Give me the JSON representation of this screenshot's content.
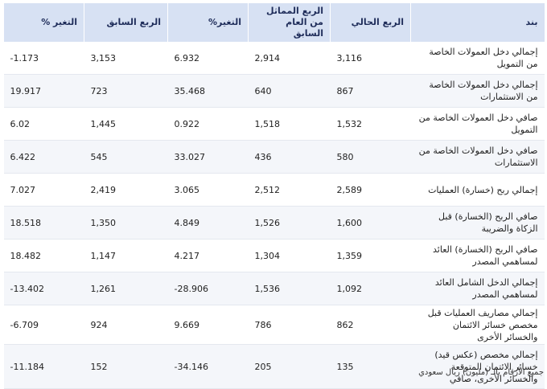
{
  "table": {
    "headers": [
      "بند",
      "الربع الحالي",
      "الربع المماثل من العام السابق",
      "التغير%",
      "الربع السابق",
      "التغير %"
    ],
    "rows": [
      {
        "item": "إجمالي دخل العمولات الخاصة من التمويل",
        "current": "3,116",
        "same_last_year": "2,914",
        "change_yoy": "6.932",
        "previous": "3,153",
        "change_qoq": "-1.173"
      },
      {
        "item": "إجمالي دخل العمولات الخاصة من الاستثمارات",
        "current": "867",
        "same_last_year": "640",
        "change_yoy": "35.468",
        "previous": "723",
        "change_qoq": "19.917"
      },
      {
        "item": "صافي دخل العمولات الخاصة من التمويل",
        "current": "1,532",
        "same_last_year": "1,518",
        "change_yoy": "0.922",
        "previous": "1,445",
        "change_qoq": "6.02"
      },
      {
        "item": "صافي دخل العمولات الخاصة من الاستثمارات",
        "current": "580",
        "same_last_year": "436",
        "change_yoy": "33.027",
        "previous": "545",
        "change_qoq": "6.422"
      },
      {
        "item": "إجمالي ربح (خسارة) العمليات",
        "current": "2,589",
        "same_last_year": "2,512",
        "change_yoy": "3.065",
        "previous": "2,419",
        "change_qoq": "7.027"
      },
      {
        "item": "صافي الربح (الخسارة) قبل الزكاة والضريبة",
        "current": "1,600",
        "same_last_year": "1,526",
        "change_yoy": "4.849",
        "previous": "1,350",
        "change_qoq": "18.518"
      },
      {
        "item": "صافي الربح (الخسارة) العائد لمساهمي المصدر",
        "current": "1,359",
        "same_last_year": "1,304",
        "change_yoy": "4.217",
        "previous": "1,147",
        "change_qoq": "18.482"
      },
      {
        "item": "إجمالي الدخل الشامل العائد لمساهمي المصدر",
        "current": "1,092",
        "same_last_year": "1,536",
        "change_yoy": "-28.906",
        "previous": "1,261",
        "change_qoq": "-13.402"
      },
      {
        "item": "إجمالي مصاريف العمليات قبل مخصص خسائر الائتمان والخسائر الأخرى",
        "current": "862",
        "same_last_year": "786",
        "change_yoy": "9.669",
        "previous": "924",
        "change_qoq": "-6.709"
      },
      {
        "item": "إجمالي مخصص (عكس قيد) خسائر الائتمان المتوقعة والخسائر الأخرى، صافي",
        "current": "135",
        "same_last_year": "205",
        "change_yoy": "-34.146",
        "previous": "152",
        "change_qoq": "-11.184"
      }
    ]
  },
  "footnote": "جميع الأرقام بالـ (مليون) ريال سعودي",
  "colors": {
    "header_bg": "#d7e1f3",
    "header_text": "#1f2d5a",
    "positive_value": "#27a844",
    "zebra_row": "#f4f6fa"
  }
}
